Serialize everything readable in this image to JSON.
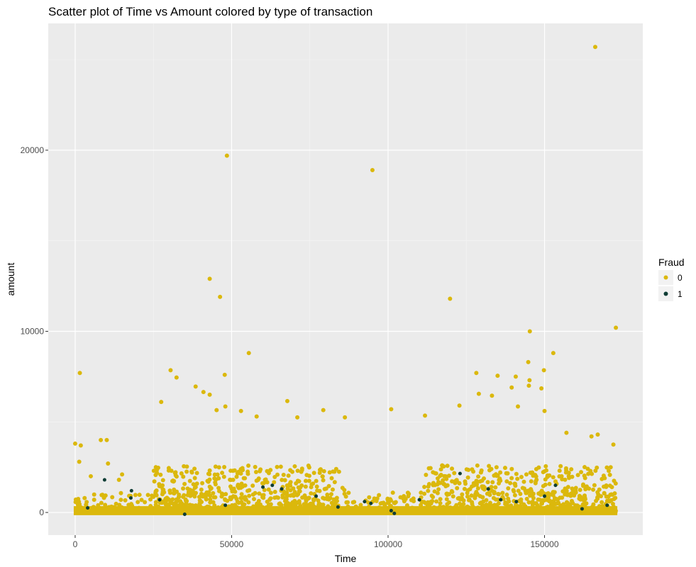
{
  "chart_data": {
    "type": "scatter",
    "title": "Scatter plot of Time vs Amount colored by type of transaction",
    "xlabel": "Time",
    "ylabel": "amount",
    "xlim": [
      -8600,
      181400
    ],
    "ylim": [
      -1250,
      27000
    ],
    "x_ticks": [
      0,
      50000,
      100000,
      150000
    ],
    "x_tick_labels": [
      "0",
      "50000",
      "100000",
      "150000"
    ],
    "y_ticks": [
      0,
      10000,
      20000
    ],
    "y_tick_labels": [
      "0",
      "10000",
      "20000"
    ],
    "x_minor": [
      25000,
      75000,
      125000
    ],
    "y_minor": [
      5000,
      15000,
      25000
    ],
    "grid": true,
    "legend": {
      "title": "Fraud",
      "position": "right",
      "entries": [
        {
          "label": "0",
          "color": "#dbb80c"
        },
        {
          "label": "1",
          "color": "#0f3d35"
        }
      ]
    },
    "colors": {
      "panel": "#ebebeb",
      "grid": "#ffffff",
      "nonfraud": "#dbb80c",
      "fraud": "#0f3d35"
    },
    "series": [
      {
        "name": "0",
        "points": [
          [
            166200,
            25700
          ],
          [
            48500,
            19700
          ],
          [
            95000,
            18900
          ],
          [
            43000,
            12900
          ],
          [
            46300,
            11900
          ],
          [
            119800,
            11800
          ],
          [
            172800,
            10200
          ],
          [
            145300,
            10000
          ],
          [
            55500,
            8800
          ],
          [
            152800,
            8800
          ],
          [
            144800,
            8300
          ],
          [
            30500,
            7850
          ],
          [
            149800,
            7850
          ],
          [
            1500,
            7700
          ],
          [
            47800,
            7600
          ],
          [
            128200,
            7700
          ],
          [
            135000,
            7550
          ],
          [
            32400,
            7450
          ],
          [
            140800,
            7500
          ],
          [
            145200,
            7300
          ],
          [
            38500,
            6950
          ],
          [
            139500,
            6900
          ],
          [
            149000,
            6850
          ],
          [
            145000,
            7000
          ],
          [
            41000,
            6650
          ],
          [
            43000,
            6500
          ],
          [
            129000,
            6550
          ],
          [
            133200,
            6450
          ],
          [
            27500,
            6100
          ],
          [
            67800,
            6150
          ],
          [
            122800,
            5900
          ],
          [
            48000,
            5850
          ],
          [
            53000,
            5600
          ],
          [
            79300,
            5650
          ],
          [
            101000,
            5700
          ],
          [
            45200,
            5650
          ],
          [
            58000,
            5300
          ],
          [
            71000,
            5250
          ],
          [
            86200,
            5250
          ],
          [
            111800,
            5350
          ],
          [
            150000,
            5600
          ],
          [
            141500,
            5850
          ],
          [
            157000,
            4400
          ],
          [
            165000,
            4200
          ],
          [
            167000,
            4300
          ],
          [
            172000,
            3750
          ],
          [
            0,
            3800
          ],
          [
            1800,
            3700
          ],
          [
            8200,
            4000
          ],
          [
            10100,
            4000
          ],
          [
            1300,
            2800
          ],
          [
            10500,
            2700
          ],
          [
            15000,
            2100
          ],
          [
            14000,
            1800
          ],
          [
            5000,
            2000
          ]
        ]
      },
      {
        "name": "1",
        "points": [
          [
            9400,
            1800
          ],
          [
            17800,
            800
          ],
          [
            18000,
            1200
          ],
          [
            27000,
            700
          ],
          [
            35000,
            -100
          ],
          [
            60000,
            1400
          ],
          [
            63000,
            1500
          ],
          [
            66000,
            1300
          ],
          [
            77000,
            900
          ],
          [
            84000,
            300
          ],
          [
            92500,
            600
          ],
          [
            94500,
            500
          ],
          [
            101000,
            100
          ],
          [
            102000,
            -50
          ],
          [
            110000,
            700
          ],
          [
            123000,
            2150
          ],
          [
            132000,
            1300
          ],
          [
            136000,
            700
          ],
          [
            141000,
            600
          ],
          [
            150000,
            900
          ],
          [
            153500,
            1500
          ],
          [
            162000,
            200
          ],
          [
            170000,
            400
          ],
          [
            4000,
            250
          ],
          [
            48000,
            400
          ]
        ]
      }
    ]
  }
}
